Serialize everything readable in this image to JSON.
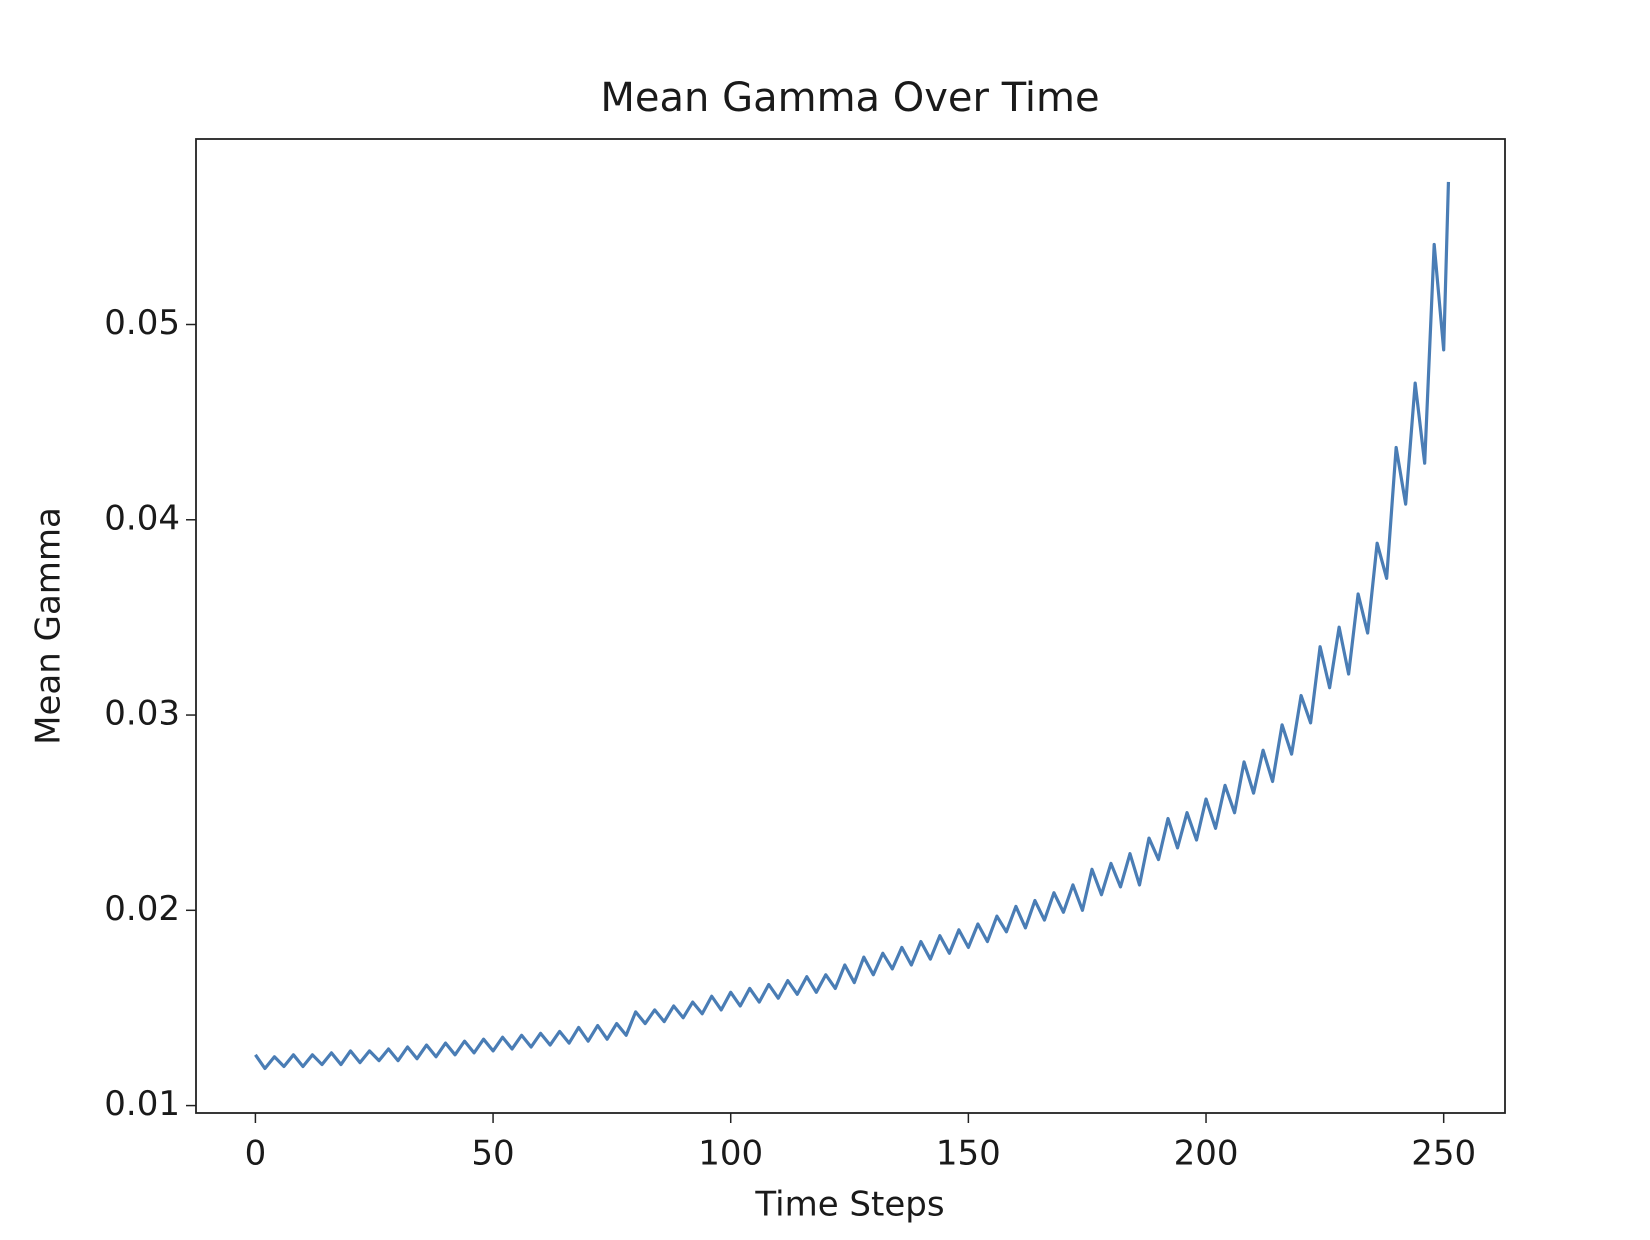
{
  "chart_data": {
    "type": "line",
    "title": "Mean Gamma Over Time",
    "xlabel": "Time Steps",
    "ylabel": "Mean Gamma",
    "x": [
      0,
      2,
      4,
      6,
      8,
      10,
      12,
      14,
      16,
      18,
      20,
      22,
      24,
      26,
      28,
      30,
      32,
      34,
      36,
      38,
      40,
      42,
      44,
      46,
      48,
      50,
      52,
      54,
      56,
      58,
      60,
      62,
      64,
      66,
      68,
      70,
      72,
      74,
      76,
      78,
      80,
      82,
      84,
      86,
      88,
      90,
      92,
      94,
      96,
      98,
      100,
      102,
      104,
      106,
      108,
      110,
      112,
      114,
      116,
      118,
      120,
      122,
      124,
      126,
      128,
      130,
      132,
      134,
      136,
      138,
      140,
      142,
      144,
      146,
      148,
      150,
      152,
      154,
      156,
      158,
      160,
      162,
      164,
      166,
      168,
      170,
      172,
      174,
      176,
      178,
      180,
      182,
      184,
      186,
      188,
      190,
      192,
      194,
      196,
      198,
      200,
      202,
      204,
      206,
      208,
      210,
      212,
      214,
      216,
      218,
      220,
      222,
      224,
      226,
      228,
      230,
      232,
      234,
      236,
      238,
      240,
      242,
      244,
      246,
      248,
      250,
      251
    ],
    "series": [
      {
        "name": "Mean Gamma",
        "color": "#4a7db5",
        "values": [
          0.0126,
          0.0119,
          0.0125,
          0.012,
          0.0126,
          0.012,
          0.0126,
          0.0121,
          0.0127,
          0.0121,
          0.0128,
          0.0122,
          0.0128,
          0.0123,
          0.0129,
          0.0123,
          0.013,
          0.0124,
          0.0131,
          0.0125,
          0.0132,
          0.0126,
          0.0133,
          0.0127,
          0.0134,
          0.0128,
          0.0135,
          0.0129,
          0.0136,
          0.013,
          0.0137,
          0.0131,
          0.0138,
          0.0132,
          0.014,
          0.0133,
          0.0141,
          0.0134,
          0.0142,
          0.0136,
          0.0148,
          0.0142,
          0.0149,
          0.0143,
          0.0151,
          0.0145,
          0.0153,
          0.0147,
          0.0156,
          0.0149,
          0.0158,
          0.0151,
          0.016,
          0.0153,
          0.0162,
          0.0155,
          0.0164,
          0.0157,
          0.0166,
          0.0158,
          0.0167,
          0.016,
          0.0172,
          0.0163,
          0.0176,
          0.0167,
          0.0178,
          0.017,
          0.0181,
          0.0172,
          0.0184,
          0.0175,
          0.0187,
          0.0178,
          0.019,
          0.0181,
          0.0193,
          0.0184,
          0.0197,
          0.0189,
          0.0202,
          0.0191,
          0.0205,
          0.0195,
          0.0209,
          0.0199,
          0.0213,
          0.02,
          0.0221,
          0.0208,
          0.0224,
          0.0212,
          0.0229,
          0.0213,
          0.0237,
          0.0226,
          0.0247,
          0.0232,
          0.025,
          0.0236,
          0.0257,
          0.0242,
          0.0264,
          0.025,
          0.0276,
          0.026,
          0.0282,
          0.0266,
          0.0295,
          0.028,
          0.031,
          0.0296,
          0.0335,
          0.0314,
          0.0345,
          0.0321,
          0.0362,
          0.0342,
          0.0388,
          0.037,
          0.0437,
          0.0408,
          0.047,
          0.0429,
          0.0541,
          0.0487,
          0.0573
        ]
      }
    ],
    "xlim": [
      -12.5,
      262.9
    ],
    "ylim": [
      0.00962,
      0.0595
    ],
    "xticks": [
      0,
      50,
      100,
      150,
      200,
      250
    ],
    "yticks": [
      0.01,
      0.02,
      0.03,
      0.04,
      0.05
    ]
  }
}
